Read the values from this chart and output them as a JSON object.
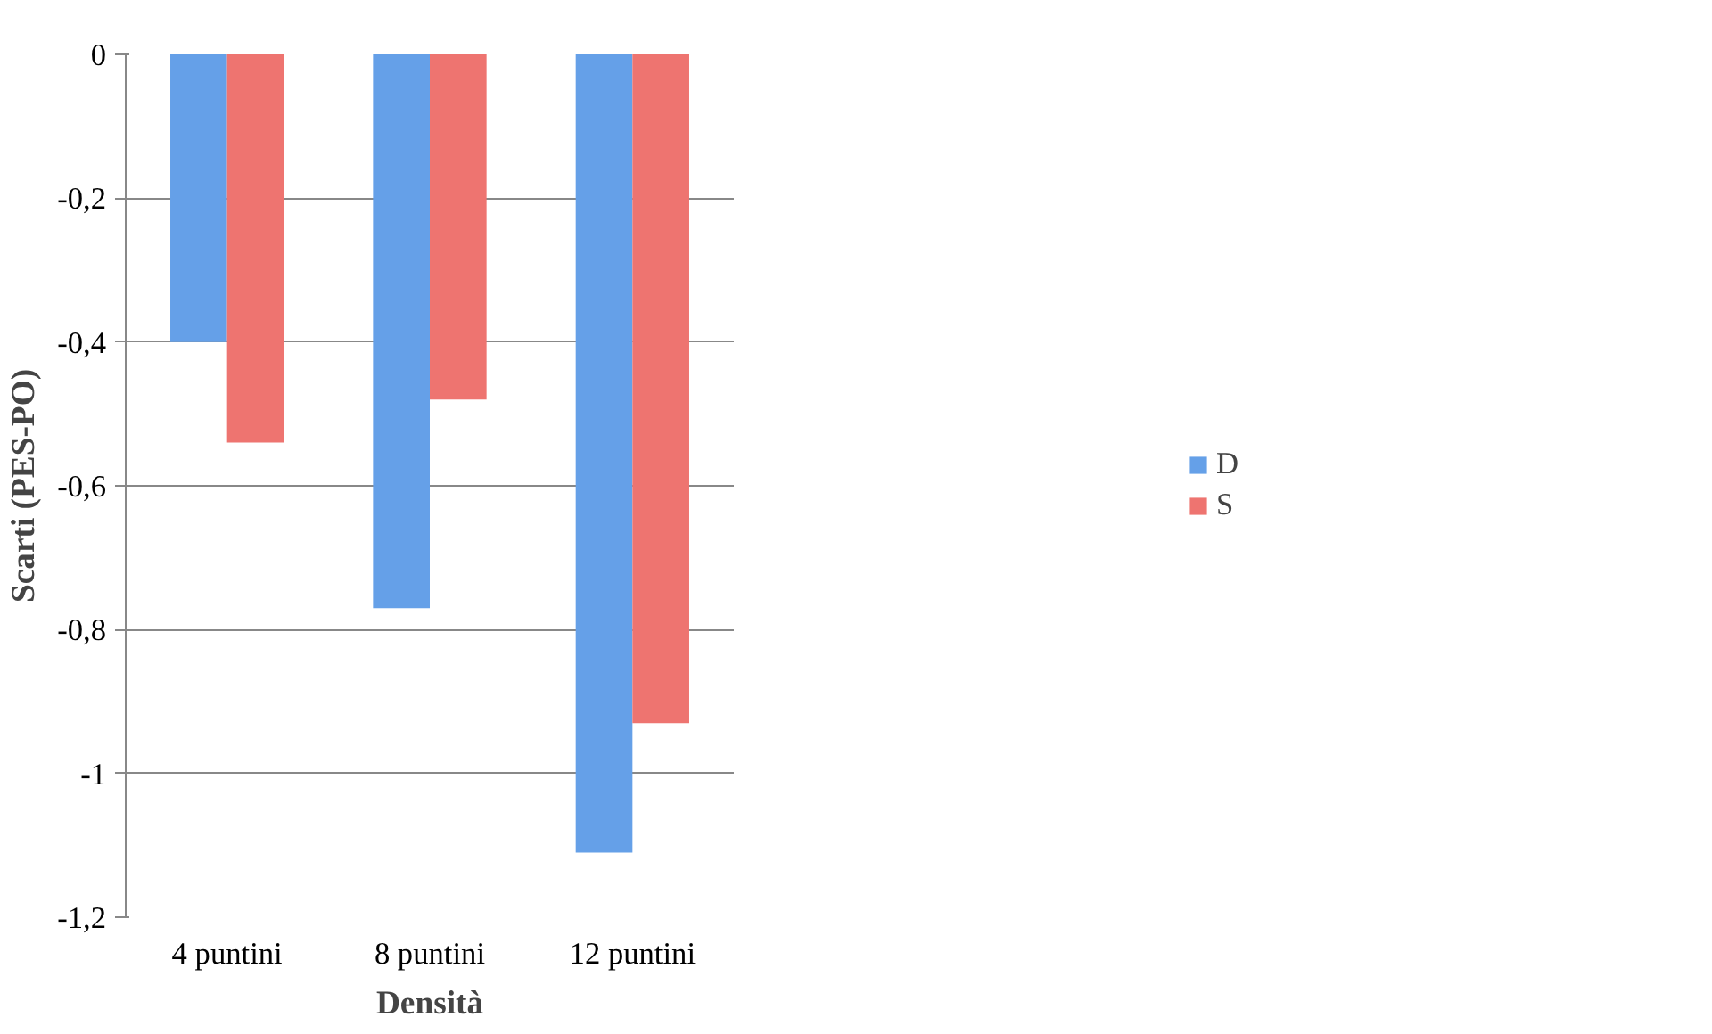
{
  "chart_data": {
    "type": "bar",
    "xlabel": "Densità",
    "ylabel": "Scarti (PES-PO)",
    "categories": [
      "4 puntini",
      "8 puntini",
      "12 puntini"
    ],
    "series": [
      {
        "name": "D",
        "color": "#65a0e8",
        "values": [
          -0.4,
          -0.77,
          -1.11
        ]
      },
      {
        "name": "S",
        "color": "#ee7470",
        "values": [
          -0.54,
          -0.48,
          -0.93
        ]
      }
    ],
    "ylim": [
      -1.2,
      0
    ],
    "yticks": [
      0,
      {
        "value": -0.2,
        "label": "-0,2"
      },
      {
        "value": -0.4,
        "label": "-0,4"
      },
      {
        "value": -0.6,
        "label": "-0,6"
      },
      {
        "value": -0.8,
        "label": "-0,8"
      },
      -1,
      {
        "value": -1.2,
        "label": "-1,2"
      }
    ],
    "grid": "y",
    "legend": "right"
  }
}
